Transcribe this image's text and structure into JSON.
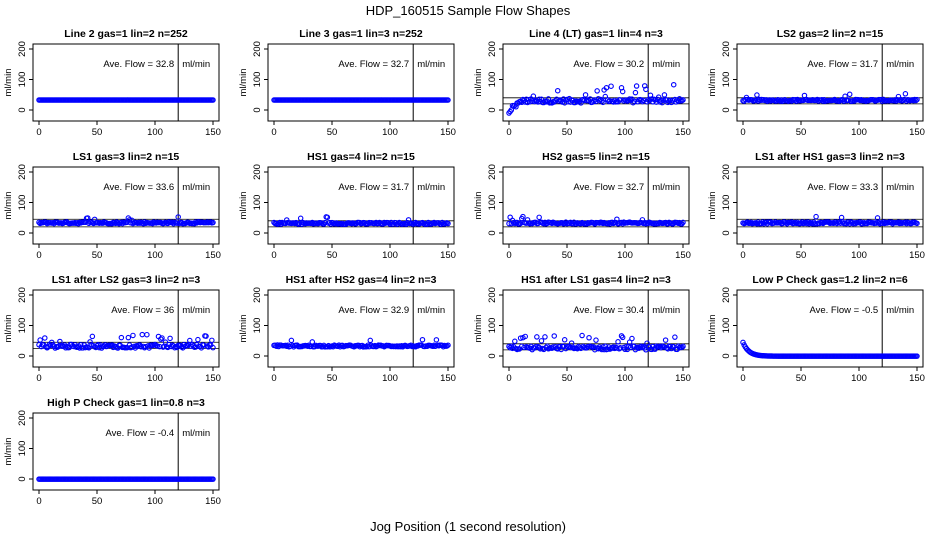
{
  "figure": {
    "title": "HDP_160515  Sample Flow Shapes",
    "xlabel": "Jog Position (1 second resolution)"
  },
  "colors": {
    "points": "#0000ff",
    "axes": "#000000"
  },
  "chart_data": [
    {
      "type": "scatter",
      "title": "Line 2 gas=1 lin=2 n=252",
      "ylabel": "ml/min",
      "annotation": "Ave. Flow = 32.8",
      "unit": "ml/min",
      "xlim": [
        0,
        150
      ],
      "ylim": [
        0,
        200
      ],
      "xticks": [
        0,
        50,
        100,
        150
      ],
      "yticks": [
        0,
        100,
        200
      ],
      "vline": 120,
      "hlines": [],
      "pattern": "flat",
      "level": 32.8
    },
    {
      "type": "scatter",
      "title": "Line 3 gas=1 lin=3 n=252",
      "ylabel": "ml/min",
      "annotation": "Ave. Flow = 32.7",
      "unit": "ml/min",
      "xlim": [
        0,
        150
      ],
      "ylim": [
        0,
        200
      ],
      "xticks": [
        0,
        50,
        100,
        150
      ],
      "yticks": [
        0,
        100,
        200
      ],
      "vline": 120,
      "hlines": [],
      "pattern": "flat",
      "level": 32.7
    },
    {
      "type": "scatter",
      "title": "Line 4 (LT) gas=1 lin=4 n=3",
      "ylabel": "ml/min",
      "annotation": "Ave. Flow = 30.2",
      "unit": "ml/min",
      "xlim": [
        0,
        150
      ],
      "ylim": [
        0,
        200
      ],
      "xticks": [
        0,
        50,
        100,
        150
      ],
      "yticks": [
        0,
        100,
        200
      ],
      "vline": 120,
      "hlines": [
        40,
        20
      ],
      "pattern": "noisy-rise",
      "level": 30.2
    },
    {
      "type": "scatter",
      "title": "LS2 gas=2 lin=2 n=15",
      "ylabel": "ml/min",
      "annotation": "Ave. Flow = 31.7",
      "unit": "ml/min",
      "xlim": [
        0,
        150
      ],
      "ylim": [
        0,
        200
      ],
      "xticks": [
        0,
        50,
        100,
        150
      ],
      "yticks": [
        0,
        100,
        200
      ],
      "vline": 120,
      "hlines": [
        40,
        20
      ],
      "pattern": "flat-noise",
      "level": 31.7
    },
    {
      "type": "scatter",
      "title": "LS1 gas=3 lin=2 n=15",
      "ylabel": "ml/min",
      "annotation": "Ave. Flow = 33.6",
      "unit": "ml/min",
      "xlim": [
        0,
        150
      ],
      "ylim": [
        0,
        200
      ],
      "xticks": [
        0,
        50,
        100,
        150
      ],
      "yticks": [
        0,
        100,
        200
      ],
      "vline": 120,
      "hlines": [
        45,
        20
      ],
      "pattern": "flat-noise",
      "level": 33.6
    },
    {
      "type": "scatter",
      "title": "HS1 gas=4 lin=2 n=15",
      "ylabel": "ml/min",
      "annotation": "Ave. Flow = 31.7",
      "unit": "ml/min",
      "xlim": [
        0,
        150
      ],
      "ylim": [
        0,
        200
      ],
      "xticks": [
        0,
        50,
        100,
        150
      ],
      "yticks": [
        0,
        100,
        200
      ],
      "vline": 120,
      "hlines": [
        40,
        20
      ],
      "pattern": "flat-noise",
      "level": 31.7
    },
    {
      "type": "scatter",
      "title": "HS2 gas=5 lin=2 n=15",
      "ylabel": "ml/min",
      "annotation": "Ave. Flow = 32.7",
      "unit": "ml/min",
      "xlim": [
        0,
        150
      ],
      "ylim": [
        0,
        200
      ],
      "xticks": [
        0,
        50,
        100,
        150
      ],
      "yticks": [
        0,
        100,
        200
      ],
      "vline": 120,
      "hlines": [
        40,
        20
      ],
      "pattern": "flat-noise",
      "level": 32.7
    },
    {
      "type": "scatter",
      "title": "LS1 after HS1 gas=3 lin=2 n=3",
      "ylabel": "ml/min",
      "annotation": "Ave. Flow = 33.3",
      "unit": "ml/min",
      "xlim": [
        0,
        150
      ],
      "ylim": [
        0,
        200
      ],
      "xticks": [
        0,
        50,
        100,
        150
      ],
      "yticks": [
        0,
        100,
        200
      ],
      "vline": 120,
      "hlines": [
        45,
        20
      ],
      "pattern": "flat-noise",
      "level": 33.3
    },
    {
      "type": "scatter",
      "title": "LS1 after LS2 gas=3 lin=2 n=3",
      "ylabel": "ml/min",
      "annotation": "Ave. Flow = 36",
      "unit": "ml/min",
      "xlim": [
        0,
        150
      ],
      "ylim": [
        0,
        200
      ],
      "xticks": [
        0,
        50,
        100,
        150
      ],
      "yticks": [
        0,
        100,
        200
      ],
      "vline": 120,
      "hlines": [
        45,
        25
      ],
      "pattern": "noisy",
      "level": 36
    },
    {
      "type": "scatter",
      "title": "HS1 after HS2 gas=4 lin=2 n=3",
      "ylabel": "ml/min",
      "annotation": "Ave. Flow = 32.9",
      "unit": "ml/min",
      "xlim": [
        0,
        150
      ],
      "ylim": [
        0,
        200
      ],
      "xticks": [
        0,
        50,
        100,
        150
      ],
      "yticks": [
        0,
        100,
        200
      ],
      "vline": 120,
      "hlines": [],
      "pattern": "flat-noise",
      "level": 32.9
    },
    {
      "type": "scatter",
      "title": "HS1 after LS1 gas=4 lin=2 n=3",
      "ylabel": "ml/min",
      "annotation": "Ave. Flow = 30.4",
      "unit": "ml/min",
      "xlim": [
        0,
        150
      ],
      "ylim": [
        0,
        200
      ],
      "xticks": [
        0,
        50,
        100,
        150
      ],
      "yticks": [
        0,
        100,
        200
      ],
      "vline": 120,
      "hlines": [
        40,
        20
      ],
      "pattern": "noisy",
      "level": 30.4
    },
    {
      "type": "scatter",
      "title": "Low P Check gas=1.2 lin=2 n=6",
      "ylabel": "ml/min",
      "annotation": "Ave. Flow = -0.5",
      "unit": "ml/min",
      "xlim": [
        0,
        150
      ],
      "ylim": [
        0,
        200
      ],
      "xticks": [
        0,
        50,
        100,
        150
      ],
      "yticks": [
        0,
        100,
        200
      ],
      "vline": 120,
      "hlines": [],
      "pattern": "decay",
      "level": -0.5
    },
    {
      "type": "scatter",
      "title": "High P Check gas=1 lin=0.8 n=3",
      "ylabel": "ml/min",
      "annotation": "Ave. Flow = -0.4",
      "unit": "ml/min",
      "xlim": [
        0,
        150
      ],
      "ylim": [
        0,
        200
      ],
      "xticks": [
        0,
        50,
        100,
        150
      ],
      "yticks": [
        0,
        100,
        200
      ],
      "vline": 120,
      "hlines": [],
      "pattern": "flat",
      "level": -0.4
    }
  ]
}
